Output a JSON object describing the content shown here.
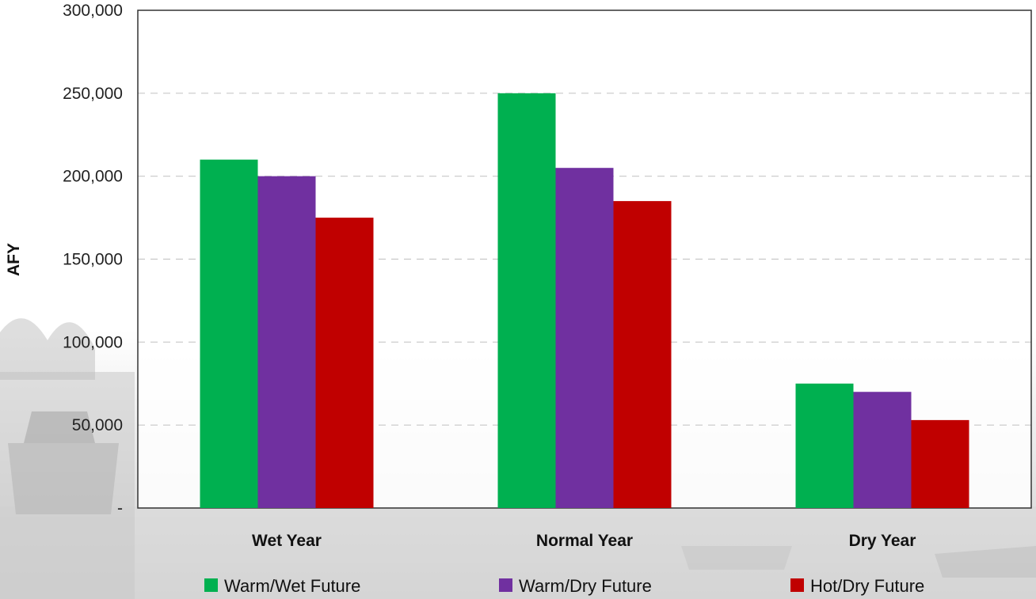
{
  "chart_data": {
    "type": "bar",
    "title": "",
    "xlabel": "",
    "ylabel": "AFY",
    "ylim": [
      0,
      300000
    ],
    "yticks": [
      0,
      50000,
      100000,
      150000,
      200000,
      250000,
      300000
    ],
    "ytick_labels": [
      "-",
      "50,000",
      "100,000",
      "150,000",
      "200,000",
      "250,000",
      "300,000"
    ],
    "categories": [
      "Wet Year",
      "Normal Year",
      "Dry Year"
    ],
    "series": [
      {
        "name": "Warm/Wet Future",
        "color": "#00b050",
        "values": [
          210000,
          250000,
          75000
        ]
      },
      {
        "name": "Warm/Dry Future",
        "color": "#7030a0",
        "values": [
          200000,
          205000,
          70000
        ]
      },
      {
        "name": "Hot/Dry Future",
        "color": "#c00000",
        "values": [
          175000,
          185000,
          53000
        ]
      }
    ],
    "grid": true,
    "legend": "bottom"
  }
}
